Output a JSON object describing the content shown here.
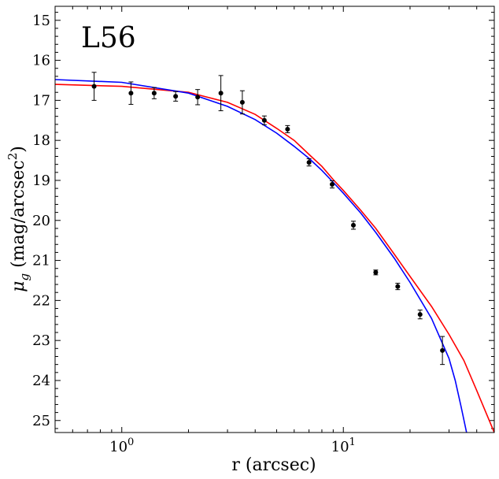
{
  "chart_data": {
    "type": "scatter",
    "panel_label": "L56",
    "xlabel": "r (arcsec)",
    "ylabel": "μ",
    "ylabel_sub": "g",
    "ylabel_unit_open": " (mag/arcsec",
    "ylabel_unit_sup": "2",
    "ylabel_unit_close": ")",
    "x_scale": "log",
    "xlim": [
      0.5,
      48
    ],
    "ylim": [
      25.3,
      14.65
    ],
    "y_inverted": true,
    "grid": false,
    "x_ticks": [
      {
        "value": 1,
        "base": "10",
        "exp": "0"
      },
      {
        "value": 10,
        "base": "10",
        "exp": "1"
      }
    ],
    "y_ticks": [
      15,
      16,
      17,
      18,
      19,
      20,
      21,
      22,
      23,
      24,
      25
    ],
    "series": [
      {
        "kind": "points",
        "color": "#000000",
        "points": [
          {
            "x": 0.75,
            "y": 16.65,
            "err": 0.35
          },
          {
            "x": 1.1,
            "y": 16.82,
            "err": 0.28
          },
          {
            "x": 1.4,
            "y": 16.82,
            "err": 0.14
          },
          {
            "x": 1.75,
            "y": 16.9,
            "err": 0.12
          },
          {
            "x": 2.2,
            "y": 16.92,
            "err": 0.19
          },
          {
            "x": 2.8,
            "y": 16.82,
            "err": 0.44
          },
          {
            "x": 3.5,
            "y": 17.05,
            "err": 0.29
          },
          {
            "x": 4.4,
            "y": 17.5,
            "err": 0.11
          },
          {
            "x": 5.6,
            "y": 17.72,
            "err": 0.09
          },
          {
            "x": 7.0,
            "y": 18.55,
            "err": 0.09
          },
          {
            "x": 8.9,
            "y": 19.1,
            "err": 0.09
          },
          {
            "x": 11.1,
            "y": 20.12,
            "err": 0.1
          },
          {
            "x": 14.0,
            "y": 21.3,
            "err": 0.06
          },
          {
            "x": 17.6,
            "y": 21.65,
            "err": 0.08
          },
          {
            "x": 22.2,
            "y": 22.35,
            "err": 0.11
          },
          {
            "x": 28.0,
            "y": 23.25,
            "err": 0.35
          }
        ]
      },
      {
        "kind": "line",
        "color": "#ff0000",
        "points": [
          [
            0.5,
            16.6
          ],
          [
            1,
            16.65
          ],
          [
            2,
            16.8
          ],
          [
            3,
            17.05
          ],
          [
            4,
            17.35
          ],
          [
            5,
            17.7
          ],
          [
            6,
            18.0
          ],
          [
            7,
            18.35
          ],
          [
            8,
            18.65
          ],
          [
            9,
            18.98
          ],
          [
            10,
            19.25
          ],
          [
            12,
            19.75
          ],
          [
            14,
            20.2
          ],
          [
            17,
            20.85
          ],
          [
            20,
            21.4
          ],
          [
            25,
            22.15
          ],
          [
            30,
            22.85
          ],
          [
            35,
            23.5
          ],
          [
            40,
            24.25
          ],
          [
            48,
            25.3
          ]
        ]
      },
      {
        "kind": "line",
        "color": "#0000ff",
        "points": [
          [
            0.5,
            16.48
          ],
          [
            1,
            16.55
          ],
          [
            2,
            16.82
          ],
          [
            3,
            17.15
          ],
          [
            4,
            17.48
          ],
          [
            5,
            17.82
          ],
          [
            6,
            18.15
          ],
          [
            7,
            18.45
          ],
          [
            8,
            18.75
          ],
          [
            9,
            19.05
          ],
          [
            10,
            19.32
          ],
          [
            12,
            19.82
          ],
          [
            14,
            20.3
          ],
          [
            17,
            20.95
          ],
          [
            20,
            21.55
          ],
          [
            25,
            22.45
          ],
          [
            30,
            23.45
          ],
          [
            32,
            24.0
          ],
          [
            34,
            24.65
          ],
          [
            36,
            25.3
          ]
        ]
      }
    ]
  }
}
